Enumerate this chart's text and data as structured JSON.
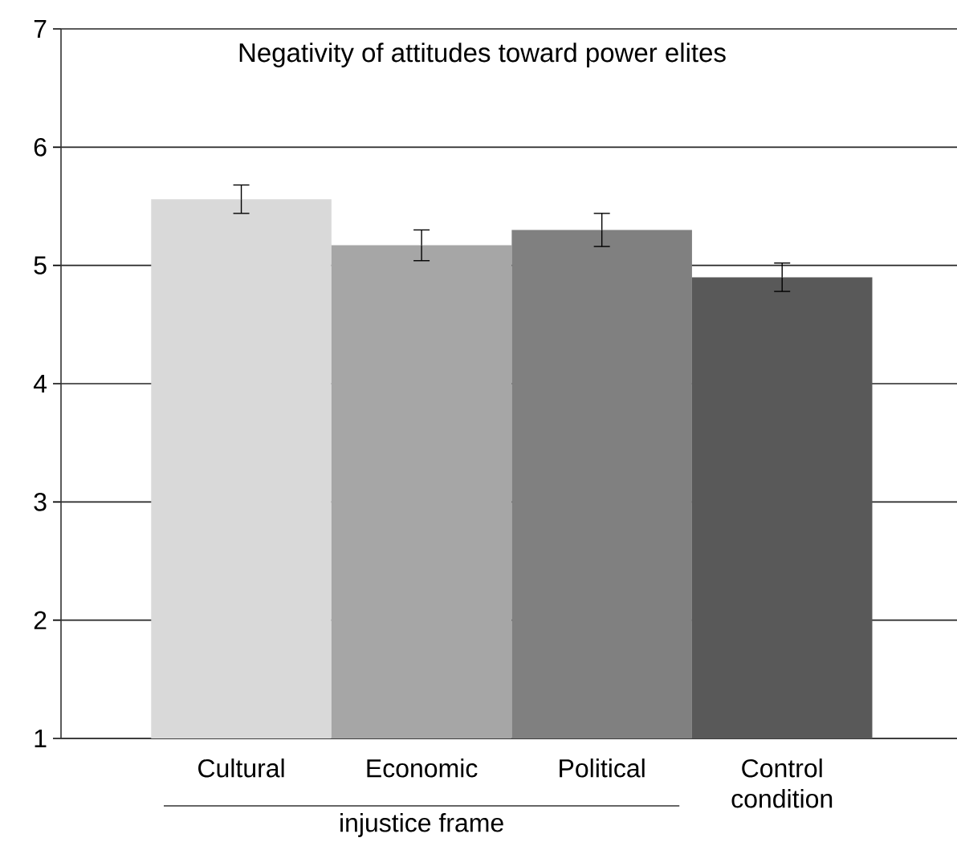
{
  "chart_data": {
    "type": "bar",
    "title": "Negativity of attitudes toward power elites",
    "categories": [
      "Cultural",
      "Economic",
      "Political",
      "Control condition"
    ],
    "values": [
      5.56,
      5.17,
      5.3,
      4.9
    ],
    "errors": [
      0.12,
      0.13,
      0.14,
      0.12
    ],
    "colors": [
      "#d9d9d9",
      "#a6a6a6",
      "#808080",
      "#595959"
    ],
    "ylim": [
      1,
      7
    ],
    "yticks": [
      1,
      2,
      3,
      4,
      5,
      6,
      7
    ],
    "grid": "y",
    "annotations": [
      "injustice frame"
    ]
  }
}
